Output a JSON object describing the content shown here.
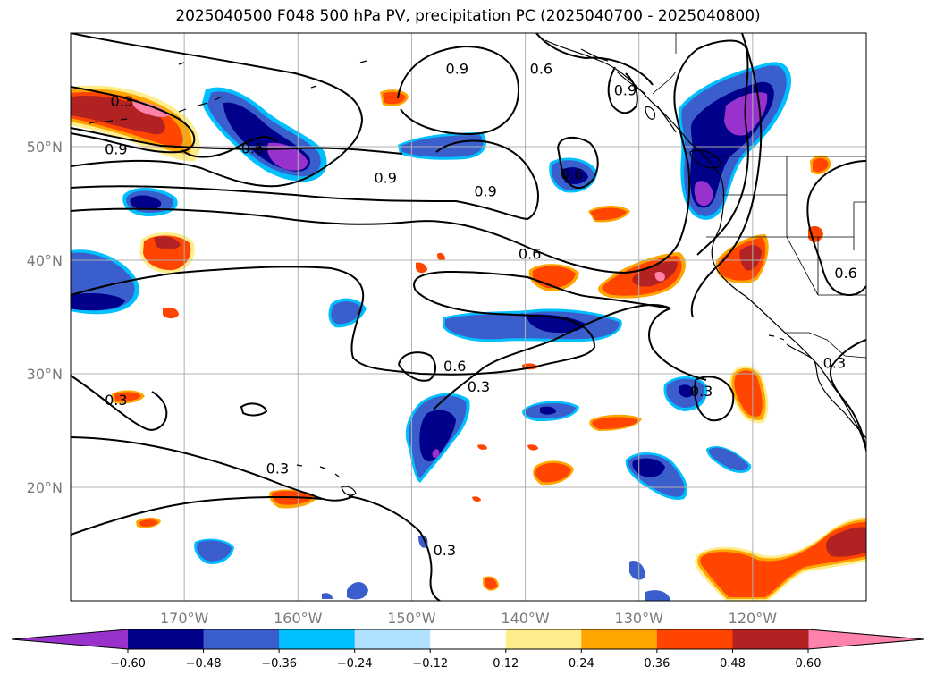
{
  "title": "2025040500 F048 500 hPa PV, precipitation PC (2025040700 - 2025040800)",
  "map": {
    "lon_range": [
      -180,
      -110
    ],
    "lat_range": [
      10,
      60
    ],
    "lon_ticks": [
      {
        "lon": -170,
        "label": "170°W"
      },
      {
        "lon": -160,
        "label": "160°W"
      },
      {
        "lon": -150,
        "label": "150°W"
      },
      {
        "lon": -140,
        "label": "140°W"
      },
      {
        "lon": -130,
        "label": "130°W"
      },
      {
        "lon": -120,
        "label": "120°W"
      }
    ],
    "lat_ticks": [
      {
        "lat": 20,
        "label": "20°N"
      },
      {
        "lat": 30,
        "label": "30°N"
      },
      {
        "lat": 40,
        "label": "40°N"
      },
      {
        "lat": 50,
        "label": "50°N"
      }
    ],
    "gridlines": true,
    "contour_labels": [
      {
        "text": "0.3",
        "lon": -175.5,
        "lat": 54.0
      },
      {
        "text": "0.9",
        "lon": -176.0,
        "lat": 49.8
      },
      {
        "text": "0.6",
        "lon": -164.0,
        "lat": 49.9
      },
      {
        "text": "0.9",
        "lon": -152.3,
        "lat": 47.3
      },
      {
        "text": "0.9",
        "lon": -146.0,
        "lat": 56.9
      },
      {
        "text": "0.9",
        "lon": -143.5,
        "lat": 46.1
      },
      {
        "text": "0.6",
        "lon": -139.6,
        "lat": 40.6
      },
      {
        "text": "0.6",
        "lon": -146.2,
        "lat": 30.7
      },
      {
        "text": "0.3",
        "lon": -144.1,
        "lat": 28.9
      },
      {
        "text": "0.6",
        "lon": -138.6,
        "lat": 56.9
      },
      {
        "text": "0.9",
        "lon": -131.2,
        "lat": 55.0
      },
      {
        "text": "0.6",
        "lon": -135.9,
        "lat": 47.6
      },
      {
        "text": "0.3",
        "lon": -124.5,
        "lat": 28.5
      },
      {
        "text": "0.6",
        "lon": -111.8,
        "lat": 38.9
      },
      {
        "text": "0.3",
        "lon": -112.8,
        "lat": 31.0
      },
      {
        "text": "0.3",
        "lon": -161.8,
        "lat": 21.7
      },
      {
        "text": "0.3",
        "lon": -147.1,
        "lat": 14.5
      },
      {
        "text": "0.3",
        "lon": -176.0,
        "lat": 27.7
      }
    ]
  },
  "colorbar": {
    "colors": [
      "#9932cc",
      "#00008b",
      "#3a5fcd",
      "#00bfff",
      "#b0e2ff",
      "#ffffff",
      "#ffec8b",
      "#ffa500",
      "#ff4500",
      "#b22222",
      "#ff82ab"
    ],
    "tick_labels": [
      "−0.60",
      "−0.48",
      "−0.36",
      "−0.24",
      "−0.12",
      "0.12",
      "0.24",
      "0.36",
      "0.48",
      "0.60"
    ],
    "extend": "both"
  }
}
